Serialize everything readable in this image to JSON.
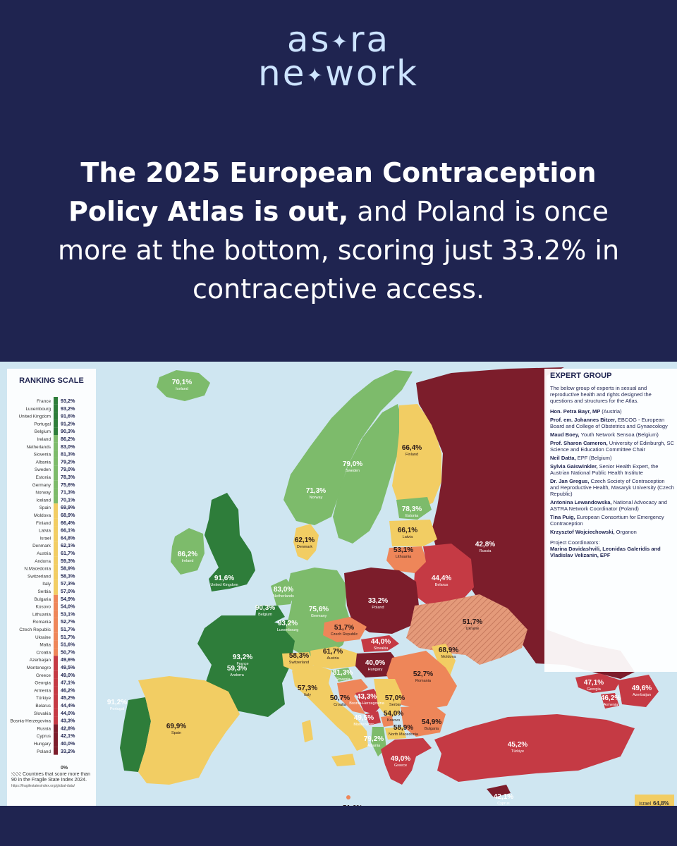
{
  "brand": {
    "line1": "as",
    "line1b": "ra",
    "line2a": "ne",
    "line2b": "work"
  },
  "headline": {
    "bold": "The 2025 European Contraception Policy Atlas is out,",
    "regular": "and Poland is once more at the bottom, scoring just 33.2% in contraceptive access."
  },
  "colors": {
    "background": "#1f2450",
    "logo": "#cde4ff",
    "sea": "#cfe6f1",
    "dark_green": "#2e7d3a",
    "light_green": "#7dbb6b",
    "yellow": "#f2cd63",
    "orange": "#ee8659",
    "red": "#c53a44",
    "dark_red": "#7c1d2b"
  },
  "ranking": {
    "title": "RANKING SCALE",
    "bottom_label": "0%",
    "note": "Countries that score more than 90 in the Fragile State Index 2024.",
    "note_url": "https://fragilestatesindex.org/global-data/",
    "rows": [
      {
        "country": "France",
        "value": "93,2%",
        "tier": "dark_green"
      },
      {
        "country": "Luxembourg",
        "value": "93,2%",
        "tier": "dark_green"
      },
      {
        "country": "United Kingdom",
        "value": "91,6%",
        "tier": "dark_green"
      },
      {
        "country": "Portugal",
        "value": "91,2%",
        "tier": "dark_green"
      },
      {
        "country": "Belgium",
        "value": "90,3%",
        "tier": "dark_green"
      },
      {
        "country": "Ireland",
        "value": "86,2%",
        "tier": "light_green"
      },
      {
        "country": "Netherlands",
        "value": "83,0%",
        "tier": "light_green"
      },
      {
        "country": "Slovenia",
        "value": "81,3%",
        "tier": "light_green"
      },
      {
        "country": "Albania",
        "value": "79,2%",
        "tier": "light_green"
      },
      {
        "country": "Sweden",
        "value": "79,0%",
        "tier": "light_green"
      },
      {
        "country": "Estonia",
        "value": "78,3%",
        "tier": "light_green"
      },
      {
        "country": "Germany",
        "value": "75,6%",
        "tier": "light_green"
      },
      {
        "country": "Norway",
        "value": "71,3%",
        "tier": "light_green"
      },
      {
        "country": "Iceland",
        "value": "70,1%",
        "tier": "light_green"
      },
      {
        "country": "Spain",
        "value": "69,9%",
        "tier": "yellow"
      },
      {
        "country": "Moldova",
        "value": "68,9%",
        "tier": "yellow"
      },
      {
        "country": "Finland",
        "value": "66,4%",
        "tier": "yellow"
      },
      {
        "country": "Latvia",
        "value": "66,1%",
        "tier": "yellow"
      },
      {
        "country": "Israel",
        "value": "64,8%",
        "tier": "yellow"
      },
      {
        "country": "Denmark",
        "value": "62,1%",
        "tier": "yellow"
      },
      {
        "country": "Austria",
        "value": "61,7%",
        "tier": "yellow"
      },
      {
        "country": "Andorra",
        "value": "59,3%",
        "tier": "yellow"
      },
      {
        "country": "N.Macedonia",
        "value": "58,9%",
        "tier": "yellow"
      },
      {
        "country": "Switzerland",
        "value": "58,3%",
        "tier": "yellow"
      },
      {
        "country": "Italy",
        "value": "57,3%",
        "tier": "yellow"
      },
      {
        "country": "Serbia",
        "value": "57,0%",
        "tier": "yellow"
      },
      {
        "country": "Bulgaria",
        "value": "54,9%",
        "tier": "orange"
      },
      {
        "country": "Kosovo",
        "value": "54,0%",
        "tier": "orange"
      },
      {
        "country": "Lithuania",
        "value": "53,1%",
        "tier": "orange"
      },
      {
        "country": "Romania",
        "value": "52,7%",
        "tier": "orange"
      },
      {
        "country": "Czech Republic",
        "value": "51,7%",
        "tier": "orange"
      },
      {
        "country": "Ukraine",
        "value": "51,7%",
        "tier": "orange"
      },
      {
        "country": "Malta",
        "value": "51,6%",
        "tier": "orange"
      },
      {
        "country": "Croatia",
        "value": "50,7%",
        "tier": "orange"
      },
      {
        "country": "Azerbaijan",
        "value": "49,6%",
        "tier": "red"
      },
      {
        "country": "Montenegro",
        "value": "49,5%",
        "tier": "red"
      },
      {
        "country": "Greece",
        "value": "49,0%",
        "tier": "red"
      },
      {
        "country": "Georgia",
        "value": "47,1%",
        "tier": "red"
      },
      {
        "country": "Armenia",
        "value": "46,2%",
        "tier": "red"
      },
      {
        "country": "Türkiye",
        "value": "45,2%",
        "tier": "red"
      },
      {
        "country": "Belarus",
        "value": "44,4%",
        "tier": "red"
      },
      {
        "country": "Slovakia",
        "value": "44,0%",
        "tier": "red"
      },
      {
        "country": "Bosnia-Herzegovina",
        "value": "43,3%",
        "tier": "red"
      },
      {
        "country": "Russia",
        "value": "42,8%",
        "tier": "dark_red"
      },
      {
        "country": "Cyprus",
        "value": "42,1%",
        "tier": "dark_red"
      },
      {
        "country": "Hungary",
        "value": "40,0%",
        "tier": "dark_red"
      },
      {
        "country": "Poland",
        "value": "33,2%",
        "tier": "dark_red"
      }
    ]
  },
  "expert_group": {
    "title": "EXPERT GROUP",
    "intro": "The below group of experts in sexual and reproductive health and rights designed the questions and structures for the Atlas.",
    "members": [
      {
        "name": "Hon. Petra Bayr, MP",
        "role": "(Austria)"
      },
      {
        "name": "Prof. em. Johannes Bitzer,",
        "role": "EBCOG - European Board and College of Obstetrics and Gynaecology"
      },
      {
        "name": "Maud Boey,",
        "role": "Youth Network Sensoa (Belgium)"
      },
      {
        "name": "Prof. Sharon Cameron,",
        "role": "University of Edinburgh, SC Science and Education Committee Chair"
      },
      {
        "name": "Neil Datta,",
        "role": "EPF (Belgium)"
      },
      {
        "name": "Sylvia Gaiswinkler,",
        "role": "Senior Health Expert, the Austrian National Public Health Institute"
      },
      {
        "name": "Dr. Jan Gregus,",
        "role": "Czech Society of Contraception and Reproductive Health, Masaryk University (Czech Republic)"
      },
      {
        "name": "Antonina Lewandowska,",
        "role": "National Advocacy and ASTRA Network Coordinator (Poland)"
      },
      {
        "name": "Tina Puig,",
        "role": "European Consortium for Emergency Contraception"
      },
      {
        "name": "Krzysztof Wojciechowski,",
        "role": "Organon"
      }
    ],
    "coordinators_label": "Project Coordinators:",
    "coordinators": "Marina Davidashvili, Leonidas Galeridis and Vladislav Velizanin, EPF"
  },
  "israel_box": {
    "country": "Israel",
    "value": "64,8%"
  },
  "map_labels": [
    {
      "name": "Iceland",
      "value": "70,1%"
    },
    {
      "name": "Norway",
      "value": "71,3%"
    },
    {
      "name": "Sweden",
      "value": "79,0%"
    },
    {
      "name": "Finland",
      "value": "66,4%"
    },
    {
      "name": "Russia",
      "value": "42,8%"
    },
    {
      "name": "Estonia",
      "value": "78,3%"
    },
    {
      "name": "Latvia",
      "value": "66,1%"
    },
    {
      "name": "Lithuania",
      "value": "53,1%"
    },
    {
      "name": "Denmark",
      "value": "62,1%"
    },
    {
      "name": "Ireland",
      "value": "86,2%"
    },
    {
      "name": "United Kingdom",
      "value": "91,6%"
    },
    {
      "name": "Netherlands",
      "value": "83,0%"
    },
    {
      "name": "Belgium",
      "value": "90,3%"
    },
    {
      "name": "Luxembourg",
      "value": "93,2%"
    },
    {
      "name": "Germany",
      "value": "75,6%"
    },
    {
      "name": "Poland",
      "value": "33,2%"
    },
    {
      "name": "Belarus",
      "value": "44,4%"
    },
    {
      "name": "Ukraine",
      "value": "51,7%"
    },
    {
      "name": "Czech Republic",
      "value": "51,7%"
    },
    {
      "name": "Slovakia",
      "value": "44,0%"
    },
    {
      "name": "Austria",
      "value": "61,7%"
    },
    {
      "name": "Hungary",
      "value": "40,0%"
    },
    {
      "name": "Moldova",
      "value": "68,9%"
    },
    {
      "name": "Romania",
      "value": "52,7%"
    },
    {
      "name": "France",
      "value": "93,2%"
    },
    {
      "name": "Switzerland",
      "value": "58,3%"
    },
    {
      "name": "Slovenia",
      "value": "81,3%"
    },
    {
      "name": "Croatia",
      "value": "50,7%"
    },
    {
      "name": "Bosnia-Herzegovina",
      "value": "43,3%"
    },
    {
      "name": "Serbia",
      "value": "57,0%"
    },
    {
      "name": "Montenegro",
      "value": "49,5%"
    },
    {
      "name": "Kosovo",
      "value": "54,0%"
    },
    {
      "name": "North Macedonia",
      "value": "58,9%"
    },
    {
      "name": "Albania",
      "value": "79,2%"
    },
    {
      "name": "Bulgaria",
      "value": "54,9%"
    },
    {
      "name": "Greece",
      "value": "49,0%"
    },
    {
      "name": "Georgia",
      "value": "47,1%"
    },
    {
      "name": "Armenia",
      "value": "46,2%"
    },
    {
      "name": "Azerbaijan",
      "value": "49,6%"
    },
    {
      "name": "Türkiye",
      "value": "45,2%"
    },
    {
      "name": "Cyprus",
      "value": "42,1%"
    },
    {
      "name": "Malta",
      "value": "51,6%"
    },
    {
      "name": "Andorra",
      "value": "59,3%"
    },
    {
      "name": "Portugal",
      "value": "91,2%"
    },
    {
      "name": "Spain",
      "value": "69,9%"
    },
    {
      "name": "Italy",
      "value": "57,3%"
    }
  ]
}
